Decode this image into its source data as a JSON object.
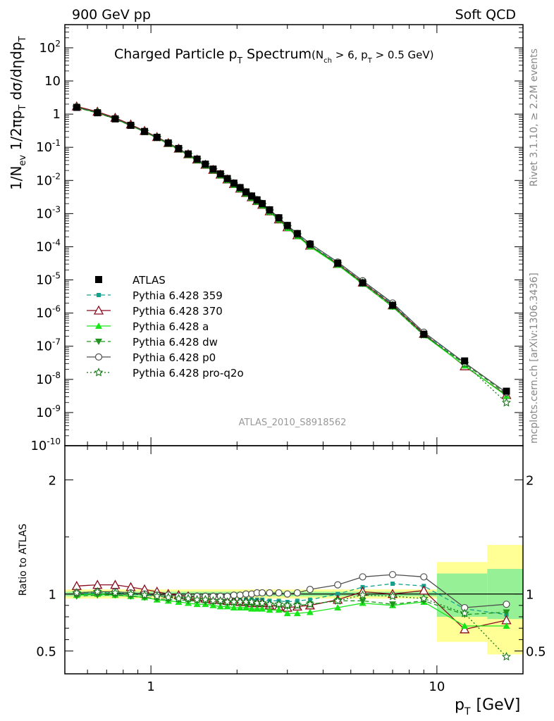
{
  "header": {
    "left": "900 GeV pp",
    "right": "Soft QCD"
  },
  "side_labels": {
    "rivet": "Rivet 3.1.10, ≥ 2.2M events",
    "mcplots": "mcplots.cern.ch [arXiv:1306.3436]"
  },
  "analysis_id": "ATLAS_2010_S8918562",
  "colors": {
    "atlas": "#000000",
    "p359": "#14a08c",
    "p370": "#8b0a1e",
    "pa": "#19e619",
    "pdw": "#1e961e",
    "pp0": "#505050",
    "pq2o": "#147814",
    "band_outer": "#ffff96",
    "band_inner": "#96f096"
  },
  "chart_data": [
    {
      "type": "line",
      "panel": "main",
      "title_main": "Charged Particle p",
      "title_sub": "T",
      "title_main2": " Spectrum",
      "title_cut": "(N",
      "title_cut_sub": "ch",
      "title_cut2": " > 6, p",
      "title_cut_sub2": "T",
      "title_cut3": " > 0.5 GeV)",
      "ylabel": "1/N",
      "ylabel_sub": "ev",
      "ylabel2": " 1/2πp",
      "ylabel_sub2": "T",
      "ylabel3": " dσ/dηdp",
      "ylabel_sub3": "T",
      "yscale": "log",
      "xscale": "log",
      "xlim": [
        0.5,
        20
      ],
      "ylim": [
        1e-10,
        500
      ],
      "ytick_labels": [
        "10^{-10}",
        "10^{-9}",
        "10^{-8}",
        "10^{-7}",
        "10^{-6}",
        "10^{-5}",
        "10^{-4}",
        "10^{-3}",
        "10^{-2}",
        "10^{-1}",
        "1",
        "10",
        "10^{2}"
      ],
      "x": [
        0.55,
        0.65,
        0.75,
        0.85,
        0.95,
        1.05,
        1.15,
        1.25,
        1.35,
        1.45,
        1.55,
        1.65,
        1.75,
        1.85,
        1.95,
        2.05,
        2.15,
        2.25,
        2.35,
        2.45,
        2.6,
        2.8,
        3.0,
        3.25,
        3.6,
        4.5,
        5.5,
        7.0,
        9.0,
        12.5,
        17.5
      ],
      "atlas": [
        1.6,
        1.1,
        0.72,
        0.46,
        0.3,
        0.2,
        0.135,
        0.092,
        0.063,
        0.044,
        0.031,
        0.022,
        0.0158,
        0.0114,
        0.0083,
        0.0061,
        0.0045,
        0.0034,
        0.0026,
        0.002,
        0.0013,
        0.00075,
        0.00044,
        0.00025,
        0.00012,
        3.2e-05,
        8.2e-06,
        1.72e-06,
        2.3e-07,
        3.6e-08,
        4.4e-09
      ],
      "legend": [
        "ATLAS",
        "Pythia 6.428 359",
        "Pythia 6.428 370",
        "Pythia 6.428 a",
        "Pythia 6.428 dw",
        "Pythia 6.428 p0",
        "Pythia 6.428 pro-q2o"
      ]
    },
    {
      "type": "line",
      "panel": "ratio",
      "ylabel": "Ratio to ATLAS",
      "xlabel": "p",
      "xlabel_sub": "T",
      "xlabel_unit": "[GeV]",
      "ylim": [
        0.3,
        2.3
      ],
      "yticks": [
        "0.5",
        "1",
        "2"
      ],
      "xticks": [
        "1",
        "10"
      ],
      "x": [
        0.55,
        0.65,
        0.75,
        0.85,
        0.95,
        1.05,
        1.15,
        1.25,
        1.35,
        1.45,
        1.55,
        1.65,
        1.75,
        1.85,
        1.95,
        2.05,
        2.15,
        2.25,
        2.35,
        2.45,
        2.6,
        2.8,
        3.0,
        3.25,
        3.6,
        4.5,
        5.5,
        7.0,
        9.0,
        12.5,
        17.5
      ],
      "band": [
        {
          "x0": 0.5,
          "x1": 10,
          "outer": [
            0.96,
            1.04
          ],
          "inner": [
            0.98,
            1.02
          ]
        },
        {
          "x0": 10,
          "x1": 15,
          "outer": [
            0.58,
            1.28
          ],
          "inner": [
            0.8,
            1.18
          ]
        },
        {
          "x0": 15,
          "x1": 20,
          "outer": [
            0.47,
            1.43
          ],
          "inner": [
            0.78,
            1.22
          ]
        }
      ],
      "series": [
        {
          "name": "Pythia 6.428 359",
          "values": [
            1.0,
            1.01,
            1.01,
            1.0,
            0.99,
            0.98,
            0.97,
            0.97,
            0.96,
            0.96,
            0.96,
            0.95,
            0.95,
            0.95,
            0.95,
            0.95,
            0.95,
            0.95,
            0.95,
            0.95,
            0.94,
            0.94,
            0.93,
            0.94,
            0.95,
            1.0,
            1.06,
            1.09,
            1.07,
            0.87,
            0.82
          ]
        },
        {
          "name": "Pythia 6.428 370",
          "values": [
            1.07,
            1.08,
            1.08,
            1.06,
            1.04,
            1.02,
            1.0,
            0.99,
            0.98,
            0.97,
            0.96,
            0.95,
            0.95,
            0.94,
            0.94,
            0.93,
            0.93,
            0.92,
            0.92,
            0.92,
            0.9,
            0.89,
            0.88,
            0.89,
            0.9,
            0.95,
            1.02,
            1.0,
            1.03,
            0.69,
            0.77
          ]
        },
        {
          "name": "Pythia 6.428 a",
          "values": [
            0.99,
            1.0,
            0.99,
            0.98,
            0.97,
            0.95,
            0.94,
            0.93,
            0.92,
            0.91,
            0.91,
            0.9,
            0.89,
            0.89,
            0.88,
            0.88,
            0.88,
            0.87,
            0.87,
            0.87,
            0.86,
            0.86,
            0.83,
            0.83,
            0.84,
            0.88,
            0.92,
            0.9,
            0.93,
            0.72,
            0.72
          ]
        },
        {
          "name": "Pythia 6.428 dw",
          "values": [
            0.98,
            0.99,
            0.99,
            0.98,
            0.97,
            0.96,
            0.95,
            0.95,
            0.94,
            0.94,
            0.93,
            0.93,
            0.92,
            0.92,
            0.92,
            0.92,
            0.91,
            0.91,
            0.91,
            0.91,
            0.9,
            0.9,
            0.89,
            0.9,
            0.91,
            0.94,
            0.94,
            0.91,
            0.94,
            0.82,
            0.84
          ]
        },
        {
          "name": "Pythia 6.428 p0",
          "values": [
            1.01,
            1.02,
            1.02,
            1.01,
            1.0,
            0.99,
            0.99,
            0.98,
            0.98,
            0.98,
            0.98,
            0.98,
            0.98,
            0.98,
            0.99,
            0.99,
            1.0,
            1.0,
            1.01,
            1.01,
            1.01,
            1.01,
            1.0,
            1.01,
            1.04,
            1.08,
            1.15,
            1.17,
            1.15,
            0.88,
            0.91
          ]
        },
        {
          "name": "Pythia 6.428 pro-q2o",
          "values": [
            1.01,
            1.02,
            1.01,
            1.0,
            0.99,
            0.98,
            0.97,
            0.96,
            0.96,
            0.95,
            0.95,
            0.94,
            0.94,
            0.93,
            0.93,
            0.93,
            0.93,
            0.93,
            0.92,
            0.92,
            0.91,
            0.91,
            0.9,
            0.9,
            0.91,
            0.94,
            0.99,
            0.98,
            0.96,
            0.83,
            0.45
          ]
        }
      ]
    }
  ]
}
